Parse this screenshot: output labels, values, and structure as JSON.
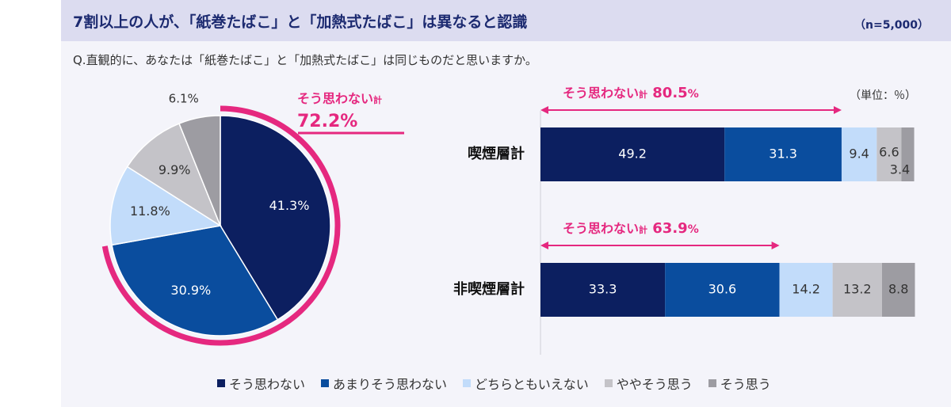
{
  "header": {
    "title": "7割以上の人が、「紙巻たばこ」と「加熱式たばこ」は異なると認識",
    "n": "（n=5,000）"
  },
  "question": "Q.直観的に、あなたは「紙巻たばこ」と「加熱式たばこ」は同じものだと思いますか。",
  "unit": "（単位：％）",
  "colors": [
    "#0c1f60",
    "#0a4d9e",
    "#c2dcfa",
    "#c4c3c8",
    "#9d9ca2"
  ],
  "chart_data": [
    {
      "type": "pie",
      "title": "",
      "categories": [
        "そう思わない",
        "あまりそう思わない",
        "どちらともいえない",
        "ややそう思う",
        "そう思う"
      ],
      "values": [
        41.3,
        30.9,
        11.8,
        9.9,
        6.1
      ],
      "labels": [
        "41.3%",
        "30.9%",
        "11.8%",
        "9.9%",
        "6.1%"
      ],
      "annotation": {
        "label": "そう思わない",
        "suffix": "計",
        "value": "72.2%"
      }
    },
    {
      "type": "bar",
      "orientation": "horizontal-stacked",
      "xlim": [
        0,
        100
      ],
      "series": [
        {
          "name": "そう思わない",
          "values": [
            49.2,
            33.3
          ]
        },
        {
          "name": "あまりそう思わない",
          "values": [
            31.3,
            30.6
          ]
        },
        {
          "name": "どちらともいえない",
          "values": [
            9.4,
            14.2
          ]
        },
        {
          "name": "ややそう思う",
          "values": [
            6.6,
            13.2
          ]
        },
        {
          "name": "そう思う",
          "values": [
            3.4,
            8.8
          ]
        }
      ],
      "rows": [
        {
          "label": "喫煙層計",
          "values": [
            49.2,
            31.3,
            9.4,
            6.6,
            3.4
          ],
          "labels": [
            "49.2",
            "31.3",
            "9.4",
            "6.6",
            "3.4"
          ],
          "annotation": {
            "label": "そう思わない",
            "suffix": "計",
            "value": "80.5",
            "unit": "%"
          }
        },
        {
          "label": "非喫煙層計",
          "values": [
            33.3,
            30.6,
            14.2,
            13.2,
            8.8
          ],
          "labels": [
            "33.3",
            "30.6",
            "14.2",
            "13.2",
            "8.8"
          ],
          "annotation": {
            "label": "そう思わない",
            "suffix": "計",
            "value": "63.9",
            "unit": "%"
          }
        }
      ]
    }
  ],
  "legend": [
    {
      "label": "そう思わない"
    },
    {
      "label": "あまりそう思わない"
    },
    {
      "label": "どちらともいえない"
    },
    {
      "label": "ややそう思う"
    },
    {
      "label": "そう思う"
    }
  ]
}
